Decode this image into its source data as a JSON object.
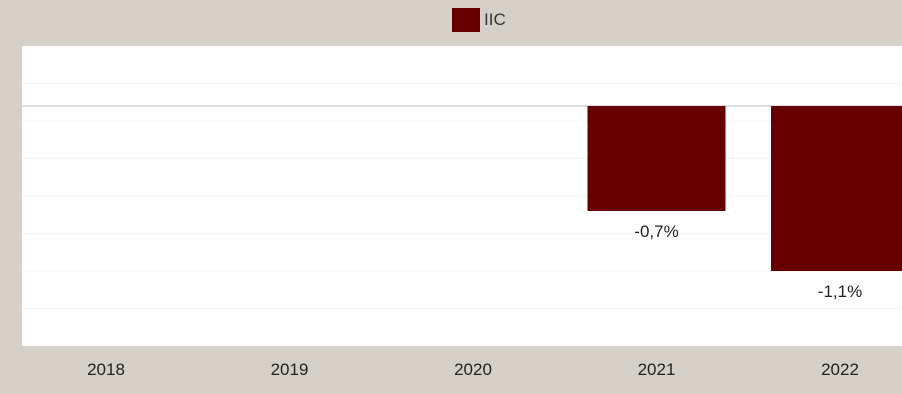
{
  "chart_data": {
    "type": "bar",
    "title": "",
    "xlabel": "",
    "ylabel": "",
    "categories": [
      "2018",
      "2019",
      "2020",
      "2021",
      "2022"
    ],
    "series": [
      {
        "name": "IIC",
        "values": [
          null,
          null,
          null,
          -0.7,
          -1.1
        ],
        "labels": [
          "",
          "",
          "",
          "-0,7%",
          "-1,1%"
        ],
        "color": "#660000"
      }
    ],
    "ylim": [
      -1.6,
      0.4
    ],
    "grid": true,
    "legend_position": "top-center"
  },
  "colors": {
    "background": "#d4d0c8",
    "plot_background": "#ffffff",
    "bar": "#660000"
  }
}
